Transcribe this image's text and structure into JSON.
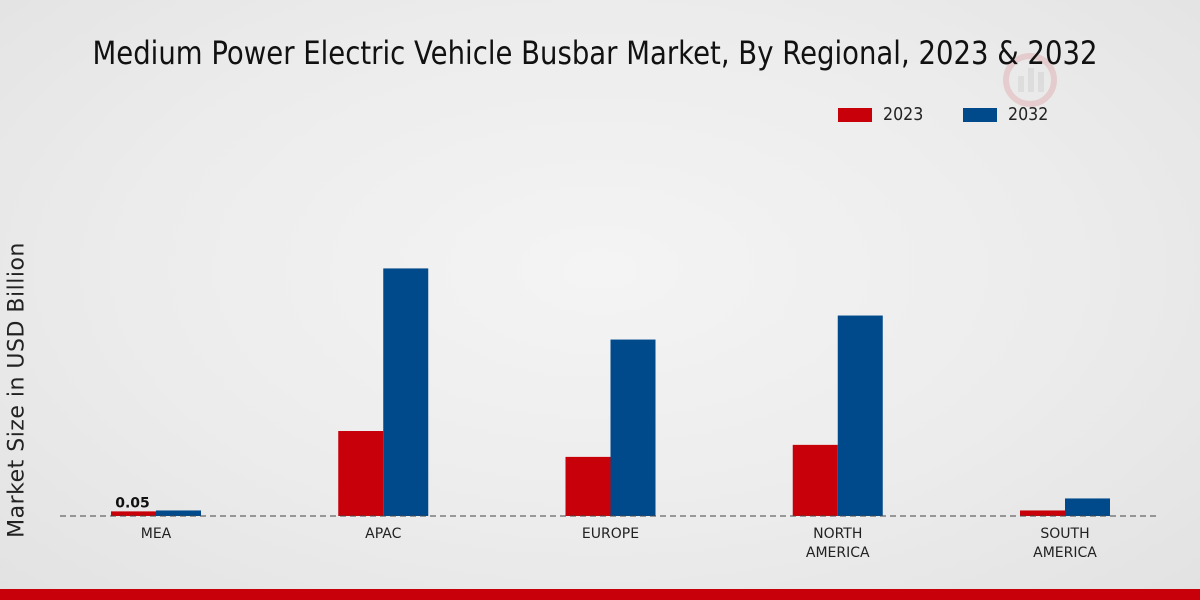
{
  "chart_data": {
    "type": "bar",
    "title": "Medium Power Electric Vehicle Busbar Market, By Regional, 2023 & 2032",
    "xlabel": "",
    "ylabel": "Market Size in USD Billion",
    "categories": [
      "MEA",
      "APAC",
      "EUROPE",
      "NORTH AMERICA",
      "SOUTH AMERICA"
    ],
    "category_lines": [
      [
        "MEA"
      ],
      [
        "APAC"
      ],
      [
        "EUROPE"
      ],
      [
        "NORTH",
        "AMERICA"
      ],
      [
        "SOUTH",
        "AMERICA"
      ]
    ],
    "series": [
      {
        "name": "2023",
        "color": "#c8000a",
        "values": [
          0.05,
          0.92,
          0.64,
          0.77,
          0.06
        ]
      },
      {
        "name": "2032",
        "color": "#004a8c",
        "values": [
          0.06,
          2.68,
          1.91,
          2.17,
          0.19
        ]
      }
    ],
    "data_labels": [
      {
        "series": "2023",
        "category": "MEA",
        "text": "0.05"
      }
    ],
    "ylim": [
      0,
      4.2
    ],
    "grid": false,
    "legend_position": "top-right"
  }
}
